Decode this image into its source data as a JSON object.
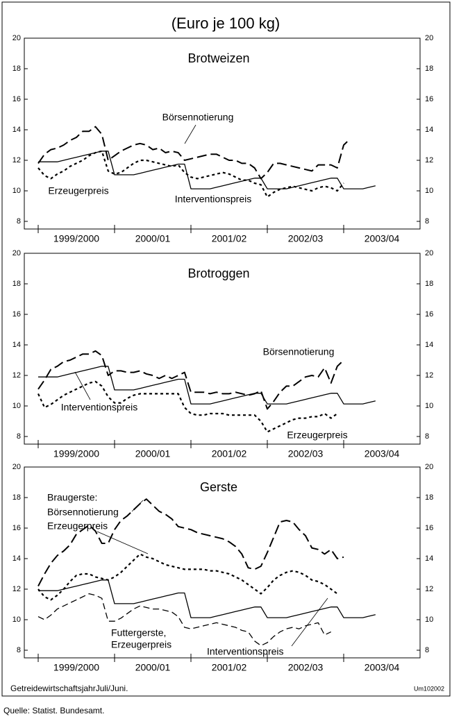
{
  "title": "(Euro je 100 kg)",
  "note": "GetreidewirtschaftsjahrJuli/Juni.",
  "code": "Um102002",
  "source": "Quelle: Statist. Bundesamt.",
  "chart_data": [
    {
      "type": "line",
      "title": "Brotweizen",
      "categories": [
        null,
        null,
        null,
        null,
        null,
        null,
        "1999/2000",
        null,
        null,
        null,
        null,
        null,
        null,
        null,
        null,
        null,
        null,
        null,
        "2000/01",
        null,
        null,
        null,
        null,
        null,
        null,
        null,
        null,
        null,
        null,
        null,
        "2001/02",
        null,
        null,
        null,
        null,
        null,
        null,
        null,
        null,
        null,
        null,
        null,
        "2002/03",
        null,
        null,
        null,
        null,
        null,
        null,
        null,
        null,
        null,
        null,
        null,
        "2003/04",
        null,
        null,
        null,
        null,
        null
      ],
      "ylim": [
        7.5,
        20
      ],
      "yticks": [
        8,
        10,
        12,
        14,
        16,
        18,
        20
      ],
      "annotations": [
        "Börsennotierung",
        "Erzeugerpreis",
        "Interventionspreis"
      ],
      "series": [
        {
          "color": "#000000",
          "dash": "solid",
          "values": [
            11.9,
            11.9,
            11.9,
            11.9,
            12.0,
            12.1,
            12.2,
            12.3,
            12.4,
            12.5,
            12.6,
            12.6,
            11.05,
            11.05,
            11.05,
            11.05,
            11.15,
            11.25,
            11.35,
            11.45,
            11.55,
            11.65,
            11.75,
            11.75,
            10.13,
            10.13,
            10.13,
            10.13,
            10.23,
            10.33,
            10.43,
            10.53,
            10.63,
            10.73,
            10.83,
            10.83,
            10.13,
            10.13,
            10.13,
            10.13,
            10.23,
            10.33,
            10.43,
            10.53,
            10.63,
            10.73,
            10.83,
            10.83,
            10.13,
            10.13,
            10.13,
            10.13,
            10.23,
            10.33,
            null,
            null,
            null,
            null,
            null,
            null
          ]
        },
        {
          "color": "#000000",
          "dash": "long-dash",
          "values": [
            11.8,
            12.4,
            12.7,
            12.8,
            13.0,
            13.3,
            13.5,
            13.9,
            13.9,
            14.2,
            13.7,
            12.0,
            12.3,
            12.6,
            12.8,
            13.0,
            13.1,
            13.0,
            12.7,
            12.8,
            12.5,
            12.6,
            12.5,
            12.0,
            12.1,
            12.2,
            12.3,
            12.4,
            12.4,
            12.2,
            12.0,
            12.0,
            11.8,
            11.8,
            11.5,
            10.8,
            11.2,
            11.8,
            11.8,
            11.7,
            11.6,
            11.5,
            11.4,
            11.3,
            11.7,
            11.7,
            11.7,
            11.5,
            13.0,
            13.4,
            null,
            null,
            null,
            null,
            null,
            null,
            null,
            null,
            null,
            null
          ]
        },
        {
          "color": "#000000",
          "dash": "dotted",
          "values": [
            11.5,
            11.0,
            10.8,
            11.1,
            11.3,
            11.6,
            11.8,
            12.0,
            12.3,
            12.5,
            12.6,
            11.3,
            11.1,
            11.2,
            11.5,
            11.8,
            12.0,
            12.0,
            11.9,
            11.8,
            11.7,
            11.6,
            11.7,
            11.2,
            10.9,
            10.8,
            10.9,
            11.0,
            11.1,
            11.2,
            11.1,
            10.9,
            10.7,
            10.7,
            10.5,
            10.4,
            9.6,
            9.9,
            10.1,
            10.2,
            10.3,
            10.2,
            10.1,
            10.0,
            10.2,
            10.3,
            10.2,
            10.0,
            10.5,
            null,
            null,
            null,
            null,
            null,
            null,
            null,
            null,
            null,
            null,
            null
          ]
        }
      ]
    },
    {
      "type": "line",
      "title": "Brotroggen",
      "categories": [
        null,
        null,
        null,
        null,
        null,
        null,
        "1999/2000",
        null,
        null,
        null,
        null,
        null,
        null,
        null,
        null,
        null,
        null,
        null,
        "2000/01",
        null,
        null,
        null,
        null,
        null,
        null,
        null,
        null,
        null,
        null,
        null,
        "2001/02",
        null,
        null,
        null,
        null,
        null,
        null,
        null,
        null,
        null,
        null,
        null,
        "2002/03",
        null,
        null,
        null,
        null,
        null,
        null,
        null,
        null,
        null,
        null,
        null,
        "2003/04",
        null,
        null,
        null,
        null,
        null
      ],
      "ylim": [
        7.5,
        20
      ],
      "yticks": [
        8,
        10,
        12,
        14,
        16,
        18,
        20
      ],
      "annotations": [
        "Börsennotierung",
        "Interventionspreis",
        "Erzeugerpreis"
      ],
      "series": [
        {
          "color": "#000000",
          "dash": "solid",
          "values": [
            11.9,
            11.9,
            11.9,
            11.9,
            12.0,
            12.1,
            12.2,
            12.3,
            12.4,
            12.5,
            12.6,
            12.6,
            11.05,
            11.05,
            11.05,
            11.05,
            11.15,
            11.25,
            11.35,
            11.45,
            11.55,
            11.65,
            11.75,
            11.75,
            10.13,
            10.13,
            10.13,
            10.13,
            10.23,
            10.33,
            10.43,
            10.53,
            10.63,
            10.73,
            10.83,
            10.83,
            10.13,
            10.13,
            10.13,
            10.13,
            10.23,
            10.33,
            10.43,
            10.53,
            10.63,
            10.73,
            10.83,
            10.83,
            10.13,
            10.13,
            10.13,
            10.13,
            10.23,
            10.33,
            null,
            null,
            null,
            null,
            null,
            null
          ]
        },
        {
          "color": "#000000",
          "dash": "long-dash",
          "values": [
            11.1,
            11.7,
            12.4,
            12.6,
            12.9,
            13.0,
            13.2,
            13.4,
            13.4,
            13.6,
            13.3,
            12.0,
            12.3,
            12.3,
            12.2,
            12.2,
            12.3,
            12.1,
            12.0,
            11.8,
            12.0,
            11.8,
            12.0,
            12.2,
            10.9,
            10.9,
            10.9,
            10.8,
            10.9,
            10.8,
            10.8,
            10.9,
            10.8,
            10.7,
            10.8,
            11.0,
            9.8,
            10.3,
            10.9,
            11.3,
            11.3,
            11.6,
            11.9,
            12.0,
            11.9,
            12.5,
            11.5,
            12.6,
            13.0,
            null,
            null,
            null,
            null,
            null,
            null,
            null,
            null,
            null,
            null,
            null
          ]
        },
        {
          "color": "#000000",
          "dash": "dotted",
          "values": [
            10.8,
            9.9,
            10.1,
            10.4,
            10.7,
            10.9,
            11.1,
            11.3,
            11.5,
            11.6,
            11.3,
            10.6,
            10.2,
            10.2,
            10.5,
            10.7,
            10.8,
            10.8,
            10.8,
            10.8,
            10.8,
            10.8,
            10.8,
            9.9,
            9.5,
            9.4,
            9.4,
            9.5,
            9.5,
            9.5,
            9.4,
            9.4,
            9.4,
            9.4,
            9.4,
            9.0,
            8.3,
            8.5,
            8.7,
            8.9,
            9.1,
            9.2,
            9.2,
            9.3,
            9.3,
            9.5,
            9.2,
            9.5,
            null,
            null,
            null,
            null,
            null,
            null,
            null,
            null,
            null,
            null,
            null,
            null
          ]
        }
      ]
    },
    {
      "type": "line",
      "title": "Gerste",
      "categories": [
        null,
        null,
        null,
        null,
        null,
        null,
        "1999/2000",
        null,
        null,
        null,
        null,
        null,
        null,
        null,
        null,
        null,
        null,
        null,
        "2000/01",
        null,
        null,
        null,
        null,
        null,
        null,
        null,
        null,
        null,
        null,
        null,
        "2001/02",
        null,
        null,
        null,
        null,
        null,
        null,
        null,
        null,
        null,
        null,
        null,
        "2002/03",
        null,
        null,
        null,
        null,
        null,
        null,
        null,
        null,
        null,
        null,
        null,
        "2003/04",
        null,
        null,
        null,
        null,
        null
      ],
      "ylim": [
        7.5,
        20
      ],
      "yticks": [
        8,
        10,
        12,
        14,
        16,
        18,
        20
      ],
      "annotations": [
        "Braugerste:",
        "Börsennotierung",
        "Erzeugerpreis",
        "Futtergerste,",
        "Erzeugerpreis",
        "Interventionspreis"
      ],
      "series": [
        {
          "color": "#000000",
          "dash": "solid",
          "values": [
            11.9,
            11.9,
            11.9,
            11.9,
            12.0,
            12.1,
            12.2,
            12.3,
            12.4,
            12.5,
            12.6,
            12.6,
            11.05,
            11.05,
            11.05,
            11.05,
            11.15,
            11.25,
            11.35,
            11.45,
            11.55,
            11.65,
            11.75,
            11.75,
            10.13,
            10.13,
            10.13,
            10.13,
            10.23,
            10.33,
            10.43,
            10.53,
            10.63,
            10.73,
            10.83,
            10.83,
            10.13,
            10.13,
            10.13,
            10.13,
            10.23,
            10.33,
            10.43,
            10.53,
            10.63,
            10.73,
            10.83,
            10.83,
            10.13,
            10.13,
            10.13,
            10.13,
            10.23,
            10.33,
            null,
            null,
            null,
            null,
            null,
            null
          ]
        },
        {
          "color": "#000000",
          "dash": "long-dash",
          "values": [
            12.2,
            13.0,
            13.7,
            14.2,
            14.5,
            14.9,
            15.6,
            15.9,
            16.2,
            15.8,
            15.0,
            15.0,
            15.9,
            16.5,
            16.8,
            17.2,
            17.6,
            17.9,
            17.5,
            17.1,
            16.9,
            16.6,
            16.1,
            16.0,
            15.9,
            15.7,
            15.6,
            15.5,
            15.4,
            15.3,
            15.1,
            14.8,
            14.3,
            13.4,
            13.3,
            13.5,
            14.4,
            15.4,
            16.4,
            16.5,
            16.4,
            15.9,
            15.5,
            14.7,
            14.6,
            14.3,
            14.6,
            14.0,
            14.1,
            null,
            null,
            null,
            null,
            null,
            null,
            null,
            null,
            null,
            null,
            null
          ]
        },
        {
          "color": "#000000",
          "dash": "dotted",
          "values": [
            12.0,
            11.5,
            11.3,
            11.6,
            12.0,
            12.5,
            12.9,
            13.0,
            13.0,
            12.8,
            12.7,
            12.6,
            12.8,
            13.1,
            13.5,
            13.9,
            14.3,
            14.1,
            14.0,
            13.8,
            13.6,
            13.5,
            13.4,
            13.3,
            13.3,
            13.3,
            13.3,
            13.2,
            13.2,
            13.1,
            13.0,
            12.8,
            12.6,
            12.3,
            12.0,
            11.7,
            12.1,
            12.6,
            12.9,
            13.1,
            13.2,
            13.1,
            12.9,
            12.6,
            12.5,
            12.3,
            12.0,
            11.7,
            null,
            null,
            null,
            null,
            null,
            null,
            null,
            null,
            null,
            null,
            null,
            null
          ]
        },
        {
          "color": "#000000",
          "dash": "dash",
          "values": [
            10.2,
            10.0,
            10.3,
            10.7,
            10.9,
            11.1,
            11.3,
            11.5,
            11.7,
            11.6,
            11.4,
            9.9,
            9.9,
            10.1,
            10.4,
            10.7,
            10.9,
            10.8,
            10.7,
            10.7,
            10.6,
            10.5,
            10.2,
            9.5,
            9.4,
            9.5,
            9.6,
            9.7,
            9.8,
            9.7,
            9.6,
            9.5,
            9.3,
            9.2,
            8.6,
            8.3,
            8.5,
            8.9,
            9.2,
            9.4,
            9.5,
            9.4,
            9.6,
            9.7,
            9.8,
            9.0,
            9.2,
            null,
            null,
            null,
            null,
            null,
            null,
            null,
            null,
            null,
            null,
            null,
            null,
            null
          ]
        }
      ]
    }
  ]
}
